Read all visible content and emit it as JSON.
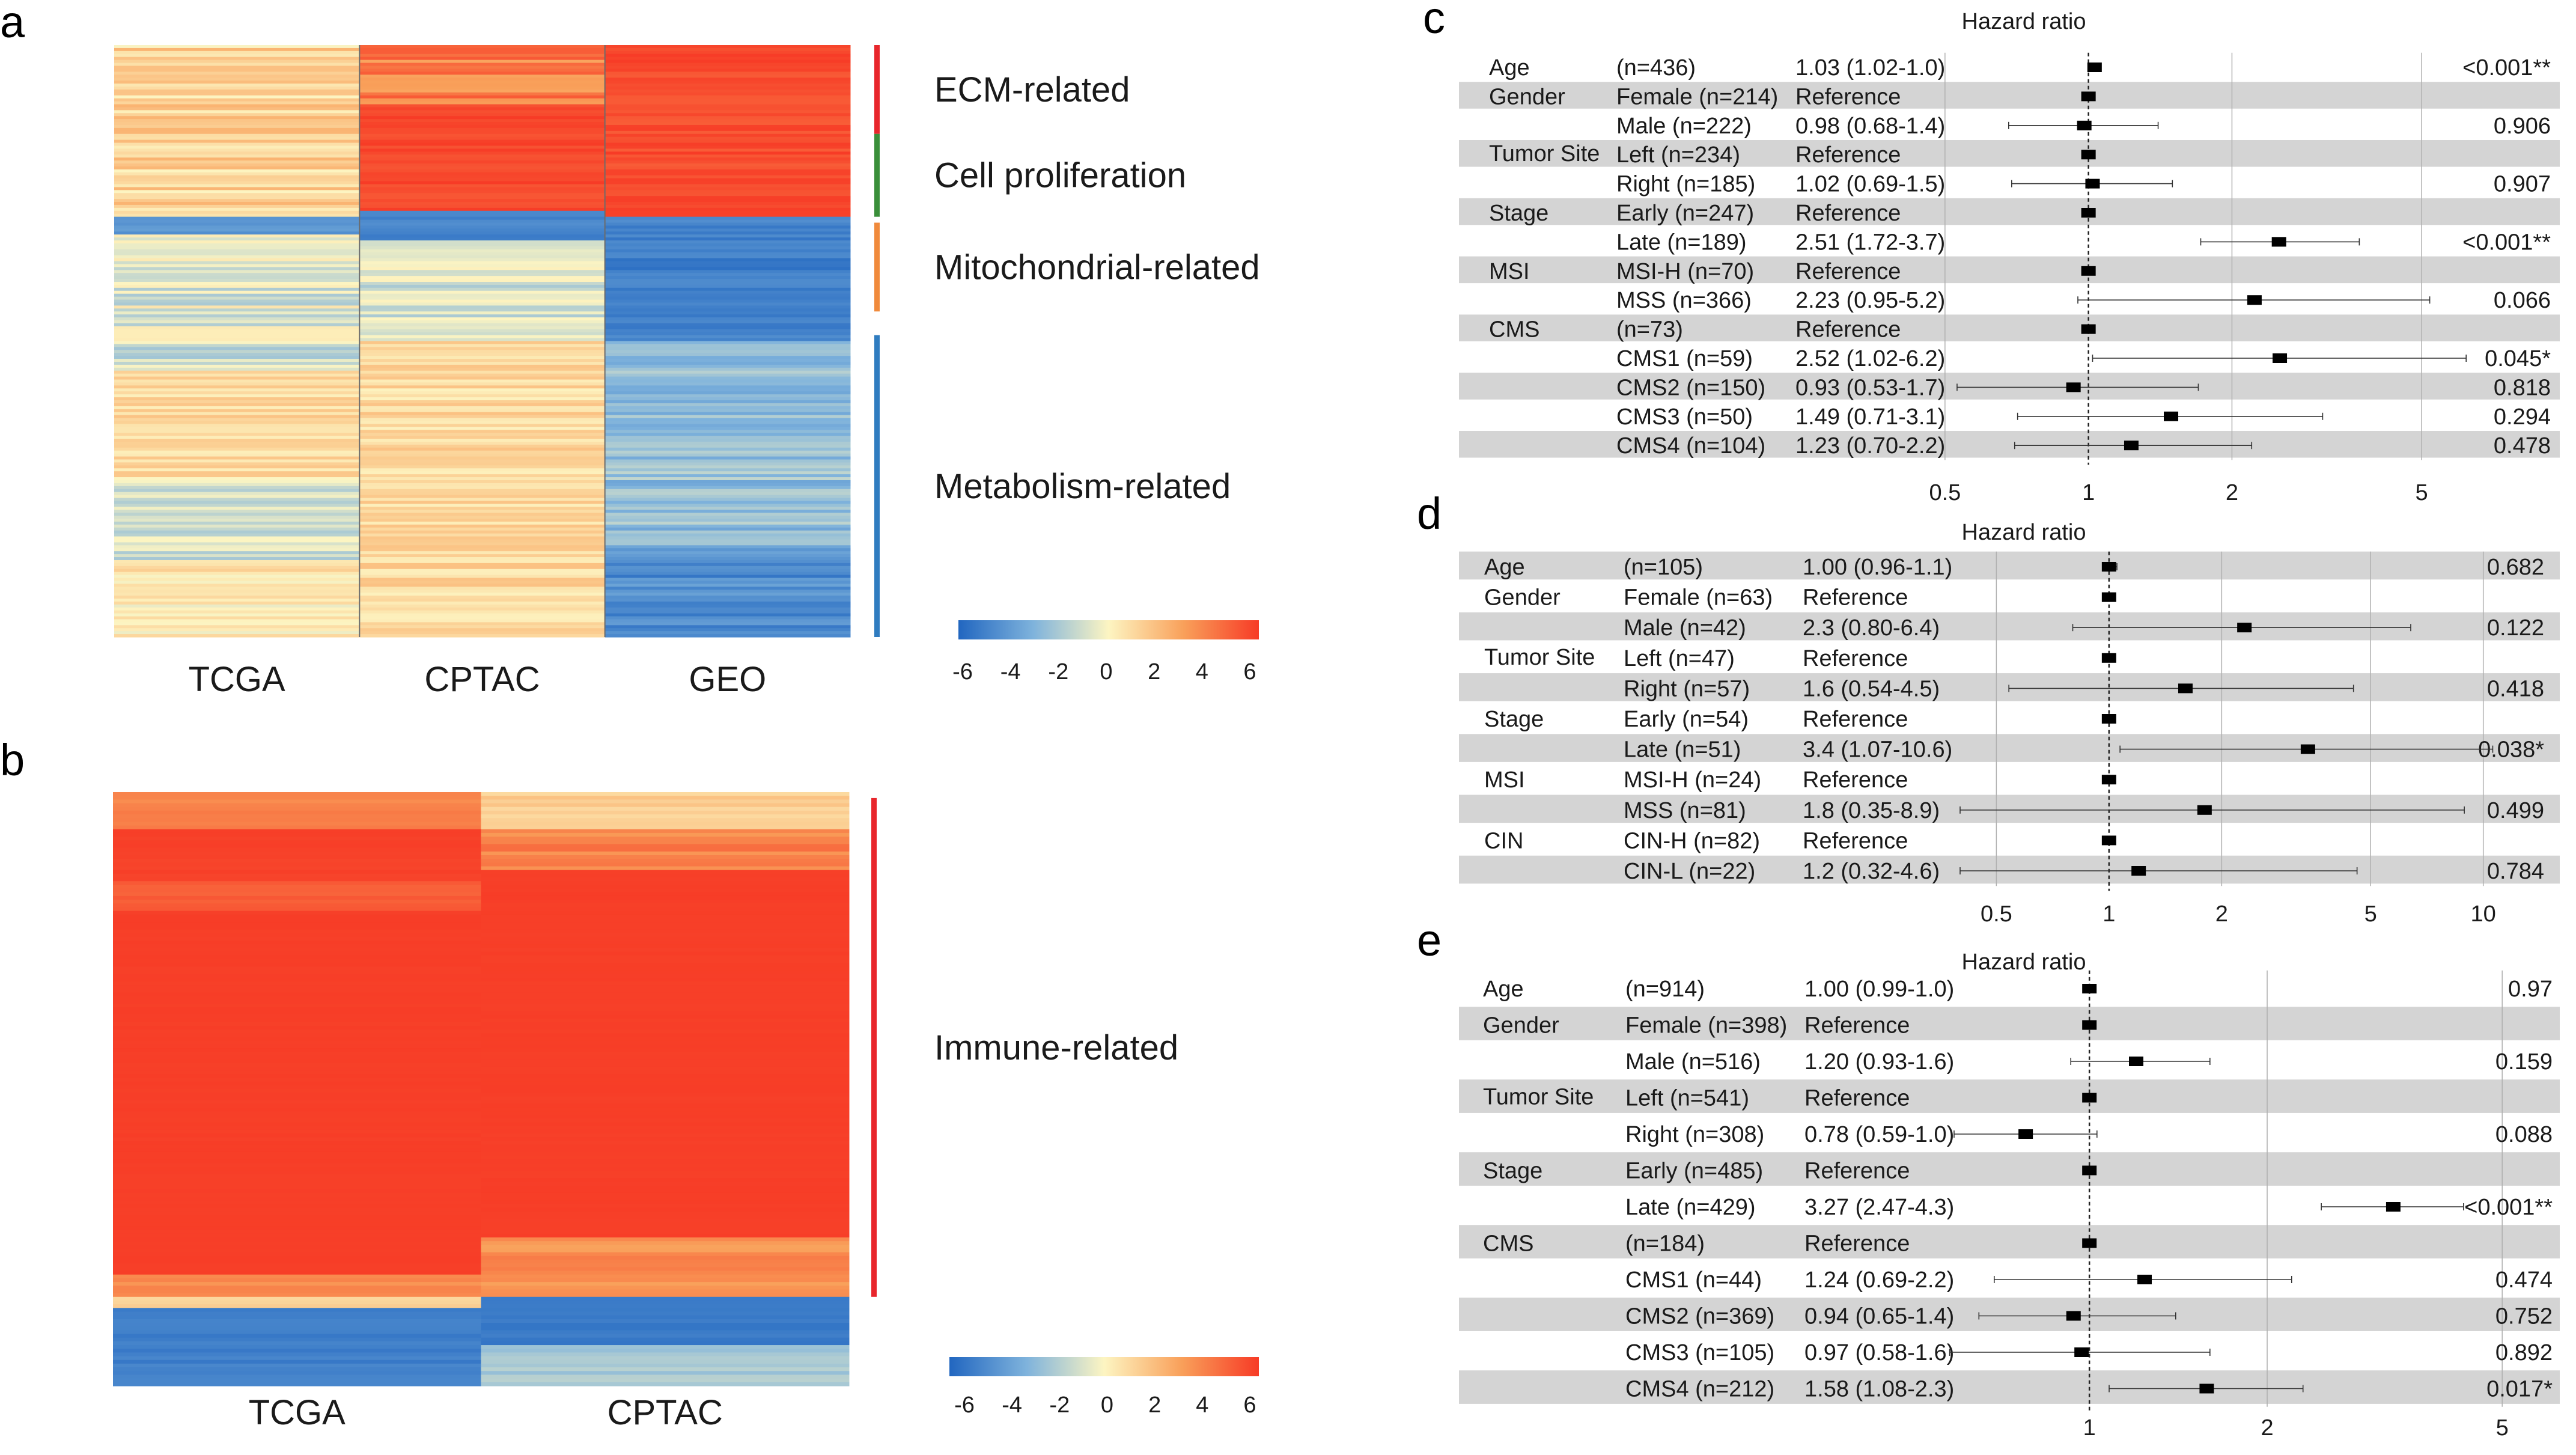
{
  "colors": {
    "low": "#2166c0",
    "mid": "#fdf5c2",
    "high": "#f73b26",
    "band": "#d4d4d4",
    "grid": "#b0b0b0"
  },
  "panels": {
    "a": {
      "label": "a"
    },
    "b": {
      "label": "b"
    },
    "c": {
      "label": "c"
    },
    "d": {
      "label": "d"
    },
    "e": {
      "label": "e"
    }
  },
  "chart_data": [
    {
      "id": "a",
      "type": "heatmap",
      "columns": [
        "TCGA",
        "CPTAC",
        "GEO"
      ],
      "groups": [
        {
          "name": "ECM-related",
          "color": "#e8262c"
        },
        {
          "name": "Cell proliferation",
          "color": "#3a8f3a"
        },
        {
          "name": "Mitochondrial-related",
          "color": "#f08a3c"
        },
        {
          "name": "Metabolism-related",
          "color": "#2f7cc0"
        }
      ],
      "colorbar": {
        "min": -6,
        "max": 6,
        "ticks": [
          "-6",
          "-4",
          "-2",
          "0",
          "2",
          "4",
          "6"
        ]
      },
      "column_profiles": [
        [
          {
            "from": 0.0,
            "to": 0.29,
            "mean": 1.2,
            "jitter": 1.3
          },
          {
            "from": 0.29,
            "to": 0.32,
            "mean": -4.0,
            "jitter": 0.8
          },
          {
            "from": 0.32,
            "to": 0.55,
            "mean": -0.8,
            "jitter": 1.4
          },
          {
            "from": 0.55,
            "to": 0.73,
            "mean": 1.0,
            "jitter": 0.8
          },
          {
            "from": 0.73,
            "to": 0.87,
            "mean": -1.2,
            "jitter": 1.2
          },
          {
            "from": 0.87,
            "to": 1.0,
            "mean": 0.5,
            "jitter": 1.0
          }
        ],
        [
          {
            "from": 0.0,
            "to": 0.1,
            "mean": 4.0,
            "jitter": 1.2
          },
          {
            "from": 0.1,
            "to": 0.28,
            "mean": 5.6,
            "jitter": 0.4
          },
          {
            "from": 0.28,
            "to": 0.33,
            "mean": -5.0,
            "jitter": 0.6
          },
          {
            "from": 0.33,
            "to": 0.5,
            "mean": -1.0,
            "jitter": 1.2
          },
          {
            "from": 0.5,
            "to": 1.0,
            "mean": 1.0,
            "jitter": 0.9
          }
        ],
        [
          {
            "from": 0.0,
            "to": 0.29,
            "mean": 5.5,
            "jitter": 0.5
          },
          {
            "from": 0.29,
            "to": 0.5,
            "mean": -5.0,
            "jitter": 0.6
          },
          {
            "from": 0.5,
            "to": 0.85,
            "mean": -2.5,
            "jitter": 1.1
          },
          {
            "from": 0.85,
            "to": 1.0,
            "mean": -4.5,
            "jitter": 0.9
          }
        ]
      ],
      "group_bounds": [
        [
          0.0,
          0.15
        ],
        [
          0.15,
          0.29
        ],
        [
          0.3,
          0.45
        ],
        [
          0.49,
          1.0
        ]
      ]
    },
    {
      "id": "b",
      "type": "heatmap",
      "columns": [
        "TCGA",
        "CPTAC"
      ],
      "groups": [
        {
          "name": "Immune-related",
          "color": "#e8262c"
        }
      ],
      "colorbar": {
        "min": -6,
        "max": 6,
        "ticks": [
          "-6",
          "-4",
          "-2",
          "0",
          "2",
          "4",
          "6"
        ]
      },
      "column_profiles": [
        [
          {
            "from": 0.0,
            "to": 0.06,
            "mean": 4.0,
            "jitter": 0.5
          },
          {
            "from": 0.06,
            "to": 0.15,
            "mean": 5.8,
            "jitter": 0.1
          },
          {
            "from": 0.15,
            "to": 0.2,
            "mean": 5.0,
            "jitter": 0.3
          },
          {
            "from": 0.2,
            "to": 0.81,
            "mean": 5.9,
            "jitter": 0.05
          },
          {
            "from": 0.81,
            "to": 0.85,
            "mean": 3.5,
            "jitter": 0.4
          },
          {
            "from": 0.85,
            "to": 0.87,
            "mean": 1.0,
            "jitter": 0.5
          },
          {
            "from": 0.87,
            "to": 1.0,
            "mean": -5.0,
            "jitter": 0.3
          }
        ],
        [
          {
            "from": 0.0,
            "to": 0.06,
            "mean": 1.5,
            "jitter": 0.6
          },
          {
            "from": 0.06,
            "to": 0.13,
            "mean": 4.0,
            "jitter": 0.8
          },
          {
            "from": 0.13,
            "to": 0.75,
            "mean": 5.9,
            "jitter": 0.05
          },
          {
            "from": 0.75,
            "to": 0.85,
            "mean": 3.5,
            "jitter": 0.6
          },
          {
            "from": 0.85,
            "to": 0.93,
            "mean": -5.2,
            "jitter": 0.2
          },
          {
            "from": 0.93,
            "to": 1.0,
            "mean": -2.0,
            "jitter": 0.5
          }
        ]
      ],
      "group_bounds": [
        [
          0.01,
          0.85
        ]
      ]
    },
    {
      "id": "c",
      "type": "forest",
      "title": "Hazard ratio",
      "xscale": "log",
      "xlim": [
        0.4,
        7
      ],
      "xticks": [
        0.5,
        1,
        2,
        5
      ],
      "rows": [
        {
          "var": "Age",
          "level": "(n=436)",
          "hr_text": "1.03 (1.02-1.0)",
          "hr": 1.03,
          "lo": 1.02,
          "hi": 1.05,
          "p": "<0.001**",
          "band": false
        },
        {
          "var": "Gender",
          "level": "Female (n=214)",
          "hr_text": "Reference",
          "hr": 1,
          "lo": null,
          "hi": null,
          "p": "",
          "band": true
        },
        {
          "var": "",
          "level": "Male (n=222)",
          "hr_text": "0.98 (0.68-1.4)",
          "hr": 0.98,
          "lo": 0.68,
          "hi": 1.4,
          "p": "0.906",
          "band": false
        },
        {
          "var": "Tumor Site",
          "level": "Left (n=234)",
          "hr_text": "Reference",
          "hr": 1,
          "lo": null,
          "hi": null,
          "p": "",
          "band": true
        },
        {
          "var": "",
          "level": "Right (n=185)",
          "hr_text": "1.02 (0.69-1.5)",
          "hr": 1.02,
          "lo": 0.69,
          "hi": 1.5,
          "p": "0.907",
          "band": false
        },
        {
          "var": "Stage",
          "level": "Early (n=247)",
          "hr_text": "Reference",
          "hr": 1,
          "lo": null,
          "hi": null,
          "p": "",
          "band": true
        },
        {
          "var": "",
          "level": "Late (n=189)",
          "hr_text": "2.51 (1.72-3.7)",
          "hr": 2.51,
          "lo": 1.72,
          "hi": 3.7,
          "p": "<0.001**",
          "band": false
        },
        {
          "var": "MSI",
          "level": "MSI-H (n=70)",
          "hr_text": "Reference",
          "hr": 1,
          "lo": null,
          "hi": null,
          "p": "",
          "band": true
        },
        {
          "var": "",
          "level": "MSS (n=366)",
          "hr_text": "2.23 (0.95-5.2)",
          "hr": 2.23,
          "lo": 0.95,
          "hi": 5.2,
          "p": "0.066",
          "band": false
        },
        {
          "var": "CMS",
          "level": "(n=73)",
          "hr_text": "Reference",
          "hr": 1,
          "lo": null,
          "hi": null,
          "p": "",
          "band": true
        },
        {
          "var": "",
          "level": "CMS1 (n=59)",
          "hr_text": "2.52 (1.02-6.2)",
          "hr": 2.52,
          "lo": 1.02,
          "hi": 6.2,
          "p": "0.045*",
          "band": false
        },
        {
          "var": "",
          "level": "CMS2 (n=150)",
          "hr_text": "0.93 (0.53-1.7)",
          "hr": 0.93,
          "lo": 0.53,
          "hi": 1.7,
          "p": "0.818",
          "band": true
        },
        {
          "var": "",
          "level": "CMS3 (n=50)",
          "hr_text": "1.49 (0.71-3.1)",
          "hr": 1.49,
          "lo": 0.71,
          "hi": 3.1,
          "p": "0.294",
          "band": false
        },
        {
          "var": "",
          "level": "CMS4 (n=104)",
          "hr_text": "1.23 (0.70-2.2)",
          "hr": 1.23,
          "lo": 0.7,
          "hi": 2.2,
          "p": "0.478",
          "band": true
        }
      ]
    },
    {
      "id": "d",
      "type": "forest",
      "title": "Hazard ratio",
      "xscale": "log",
      "xlim": [
        0.4,
        12
      ],
      "xticks": [
        0.5,
        1,
        2,
        5,
        10
      ],
      "rows": [
        {
          "var": "Age",
          "level": "(n=105)",
          "hr_text": "1.00 (0.96-1.1)",
          "hr": 1.0,
          "lo": 0.96,
          "hi": 1.05,
          "p": "0.682",
          "band": true
        },
        {
          "var": "Gender",
          "level": "Female (n=63)",
          "hr_text": "Reference",
          "hr": 1,
          "lo": null,
          "hi": null,
          "p": "",
          "band": false
        },
        {
          "var": "",
          "level": "Male (n=42)",
          "hr_text": "2.3 (0.80-6.4)",
          "hr": 2.3,
          "lo": 0.8,
          "hi": 6.4,
          "p": "0.122",
          "band": true
        },
        {
          "var": "Tumor Site",
          "level": "Left (n=47)",
          "hr_text": "Reference",
          "hr": 1,
          "lo": null,
          "hi": null,
          "p": "",
          "band": false
        },
        {
          "var": "",
          "level": "Right (n=57)",
          "hr_text": "1.6 (0.54-4.5)",
          "hr": 1.6,
          "lo": 0.54,
          "hi": 4.5,
          "p": "0.418",
          "band": true
        },
        {
          "var": "Stage",
          "level": "Early (n=54)",
          "hr_text": "Reference",
          "hr": 1,
          "lo": null,
          "hi": null,
          "p": "",
          "band": false
        },
        {
          "var": "",
          "level": "Late (n=51)",
          "hr_text": "3.4 (1.07-10.6)",
          "hr": 3.4,
          "lo": 1.07,
          "hi": 10.6,
          "p": "0.038*",
          "band": true
        },
        {
          "var": "MSI",
          "level": "MSI-H (n=24)",
          "hr_text": "Reference",
          "hr": 1,
          "lo": null,
          "hi": null,
          "p": "",
          "band": false
        },
        {
          "var": "",
          "level": "MSS (n=81)",
          "hr_text": "1.8 (0.35-8.9)",
          "hr": 1.8,
          "lo": 0.35,
          "hi": 8.9,
          "p": "0.499",
          "band": true
        },
        {
          "var": "CIN",
          "level": "CIN-H (n=82)",
          "hr_text": "Reference",
          "hr": 1,
          "lo": null,
          "hi": null,
          "p": "",
          "band": false
        },
        {
          "var": "",
          "level": "CIN-L (n=22)",
          "hr_text": "1.2 (0.32-4.6)",
          "hr": 1.2,
          "lo": 0.32,
          "hi": 4.6,
          "p": "0.784",
          "band": true
        }
      ]
    },
    {
      "id": "e",
      "type": "forest",
      "title": "Hazard ratio",
      "xscale": "log",
      "xlim": [
        0.55,
        6
      ],
      "xticks": [
        1,
        2,
        5
      ],
      "rows": [
        {
          "var": "Age",
          "level": "(n=914)",
          "hr_text": "1.00 (0.99-1.0)",
          "hr": 1.0,
          "lo": 0.99,
          "hi": 1.01,
          "p": "0.97",
          "band": false
        },
        {
          "var": "Gender",
          "level": "Female (n=398)",
          "hr_text": "Reference",
          "hr": 1,
          "lo": null,
          "hi": null,
          "p": "",
          "band": true
        },
        {
          "var": "",
          "level": "Male (n=516)",
          "hr_text": "1.20 (0.93-1.6)",
          "hr": 1.2,
          "lo": 0.93,
          "hi": 1.6,
          "p": "0.159",
          "band": false
        },
        {
          "var": "Tumor Site",
          "level": "Left (n=541)",
          "hr_text": "Reference",
          "hr": 1,
          "lo": null,
          "hi": null,
          "p": "",
          "band": true
        },
        {
          "var": "",
          "level": "Right (n=308)",
          "hr_text": "0.78 (0.59-1.0)",
          "hr": 0.78,
          "lo": 0.59,
          "hi": 1.03,
          "p": "0.088",
          "band": false
        },
        {
          "var": "Stage",
          "level": "Early (n=485)",
          "hr_text": "Reference",
          "hr": 1,
          "lo": null,
          "hi": null,
          "p": "",
          "band": true
        },
        {
          "var": "",
          "level": "Late (n=429)",
          "hr_text": "3.27 (2.47-4.3)",
          "hr": 3.27,
          "lo": 2.47,
          "hi": 4.3,
          "p": "<0.001**",
          "band": false
        },
        {
          "var": "CMS",
          "level": "(n=184)",
          "hr_text": "Reference",
          "hr": 1,
          "lo": null,
          "hi": null,
          "p": "",
          "band": true
        },
        {
          "var": "",
          "level": "CMS1 (n=44)",
          "hr_text": "1.24 (0.69-2.2)",
          "hr": 1.24,
          "lo": 0.69,
          "hi": 2.2,
          "p": "0.474",
          "band": false
        },
        {
          "var": "",
          "level": "CMS2 (n=369)",
          "hr_text": "0.94 (0.65-1.4)",
          "hr": 0.94,
          "lo": 0.65,
          "hi": 1.4,
          "p": "0.752",
          "band": true
        },
        {
          "var": "",
          "level": "CMS3 (n=105)",
          "hr_text": "0.97 (0.58-1.6)",
          "hr": 0.97,
          "lo": 0.58,
          "hi": 1.6,
          "p": "0.892",
          "band": false
        },
        {
          "var": "",
          "level": "CMS4 (n=212)",
          "hr_text": "1.58 (1.08-2.3)",
          "hr": 1.58,
          "lo": 1.08,
          "hi": 2.3,
          "p": "0.017*",
          "band": true
        }
      ]
    }
  ]
}
